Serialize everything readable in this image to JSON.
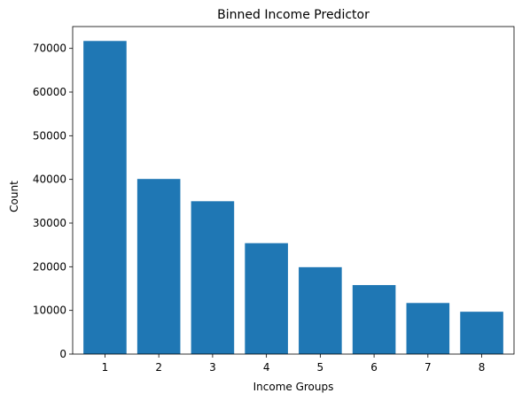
{
  "chart_data": {
    "type": "bar",
    "title": "Binned Income Predictor",
    "xlabel": "Income Groups",
    "ylabel": "Count",
    "categories": [
      "1",
      "2",
      "3",
      "4",
      "5",
      "6",
      "7",
      "8"
    ],
    "values": [
      71700,
      40100,
      35000,
      25400,
      19900,
      15800,
      11700,
      9700
    ],
    "ylim": [
      0,
      75000
    ],
    "yticks": [
      0,
      10000,
      20000,
      30000,
      40000,
      50000,
      60000,
      70000
    ],
    "ytick_labels": [
      "0",
      "10000",
      "20000",
      "30000",
      "40000",
      "50000",
      "60000",
      "70000"
    ],
    "grid": false,
    "bar_color": "#1f77b4"
  }
}
